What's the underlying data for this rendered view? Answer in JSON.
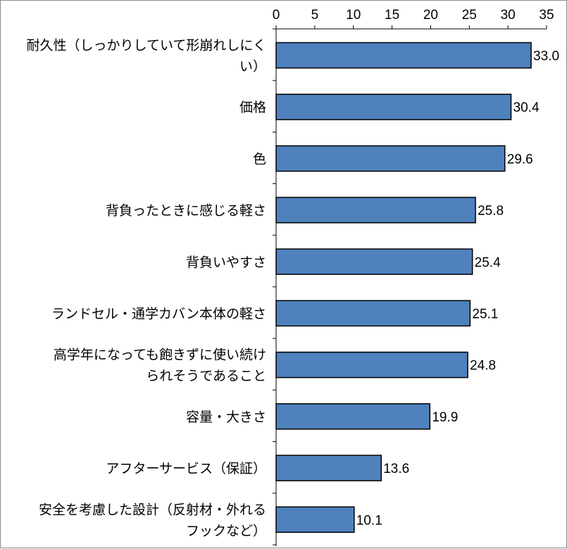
{
  "chart_data": {
    "type": "bar",
    "orientation": "horizontal",
    "categories": [
      [
        "耐久性（しっかりしていて形崩れしにく",
        "い）"
      ],
      [
        "価格"
      ],
      [
        "色"
      ],
      [
        "背負ったときに感じる軽さ"
      ],
      [
        "背負いやすさ"
      ],
      [
        "ランドセル・通学カバン本体の軽さ"
      ],
      [
        "高学年になっても飽きずに使い続け",
        "られそうであること"
      ],
      [
        "容量・大きさ"
      ],
      [
        "アフターサービス（保証）"
      ],
      [
        "安全を考慮した設計（反射材・外れる",
        "フックなど）"
      ]
    ],
    "values": [
      33.0,
      30.4,
      29.6,
      25.8,
      25.4,
      25.1,
      24.8,
      19.9,
      13.6,
      10.1
    ],
    "value_labels": [
      "33.0",
      "30.4",
      "29.6",
      "25.8",
      "25.4",
      "25.1",
      "24.8",
      "19.9",
      "13.6",
      "10.1"
    ],
    "x_ticks": [
      "0",
      "5",
      "10",
      "15",
      "20",
      "25",
      "30",
      "35"
    ],
    "xlim": [
      0,
      35
    ],
    "x_axis_position": "top",
    "grid": false,
    "legend": "none",
    "bar_color": "#4f81bd",
    "bar_edge_color": "#000000"
  }
}
